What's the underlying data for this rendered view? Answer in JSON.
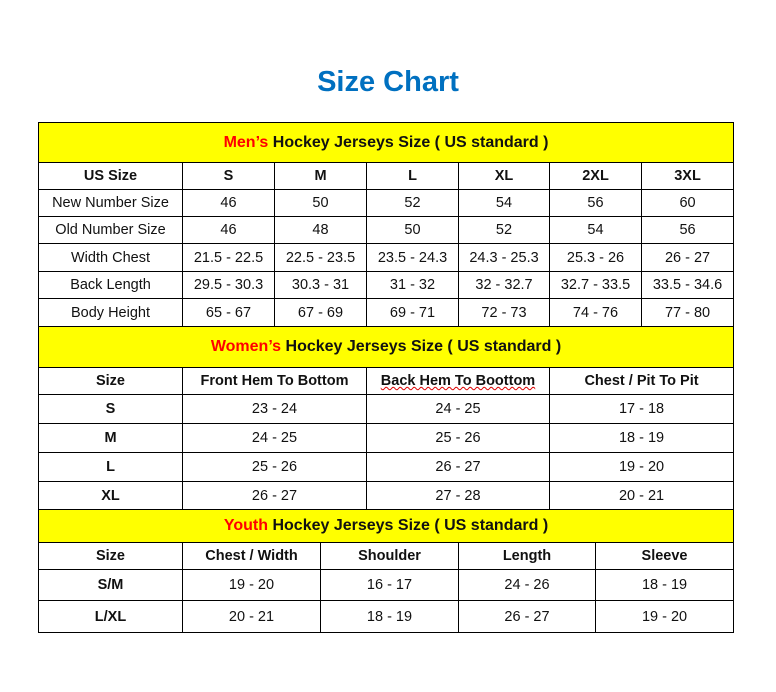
{
  "title": "Size Chart",
  "colors": {
    "title": "#0070C0",
    "band": "#FFFF00",
    "highlight": "#FF0000"
  },
  "sections": [
    {
      "highlight": "Men’s",
      "heading": " Hockey Jerseys Size ( US standard )",
      "columns": [
        "US Size",
        "S",
        "M",
        "L",
        "XL",
        "2XL",
        "3XL"
      ],
      "rows": [
        [
          "New Number Size",
          "46",
          "50",
          "52",
          "54",
          "56",
          "60"
        ],
        [
          "Old Number Size",
          "46",
          "48",
          "50",
          "52",
          "54",
          "56"
        ],
        [
          "Width Chest",
          "21.5 - 22.5",
          "22.5 - 23.5",
          "23.5 - 24.3",
          "24.3 - 25.3",
          "25.3 - 26",
          "26 - 27"
        ],
        [
          "Back Length",
          "29.5 - 30.3",
          "30.3 - 31",
          "31 - 32",
          "32 - 32.7",
          "32.7 - 33.5",
          "33.5 - 34.6"
        ],
        [
          "Body Height",
          "65 - 67",
          "67 - 69",
          "69 - 71",
          "72 - 73",
          "74 - 76",
          "77 - 80"
        ]
      ]
    },
    {
      "highlight": "Women’s",
      "heading": " Hockey Jerseys Size ( US standard )",
      "columns": [
        "Size",
        "Front Hem To Bottom",
        "Back Hem To Boottom",
        "Chest / Pit To Pit"
      ],
      "rows": [
        [
          "S",
          "23 - 24",
          "24 - 25",
          "17 - 18"
        ],
        [
          "M",
          "24 - 25",
          "25 - 26",
          "18 - 19"
        ],
        [
          "L",
          "25 - 26",
          "26 - 27",
          "19 - 20"
        ],
        [
          "XL",
          "26 - 27",
          "27 - 28",
          "20 - 21"
        ]
      ]
    },
    {
      "highlight": "Youth",
      "heading": " Hockey Jerseys Size ( US standard )",
      "columns": [
        "Size",
        "Chest / Width",
        "Shoulder",
        "Length",
        "Sleeve"
      ],
      "rows": [
        [
          "S/M",
          "19 - 20",
          "16 - 17",
          "24 - 26",
          "18 - 19"
        ],
        [
          "L/XL",
          "20 - 21",
          "18 - 19",
          "26 - 27",
          "19 - 20"
        ]
      ]
    }
  ]
}
